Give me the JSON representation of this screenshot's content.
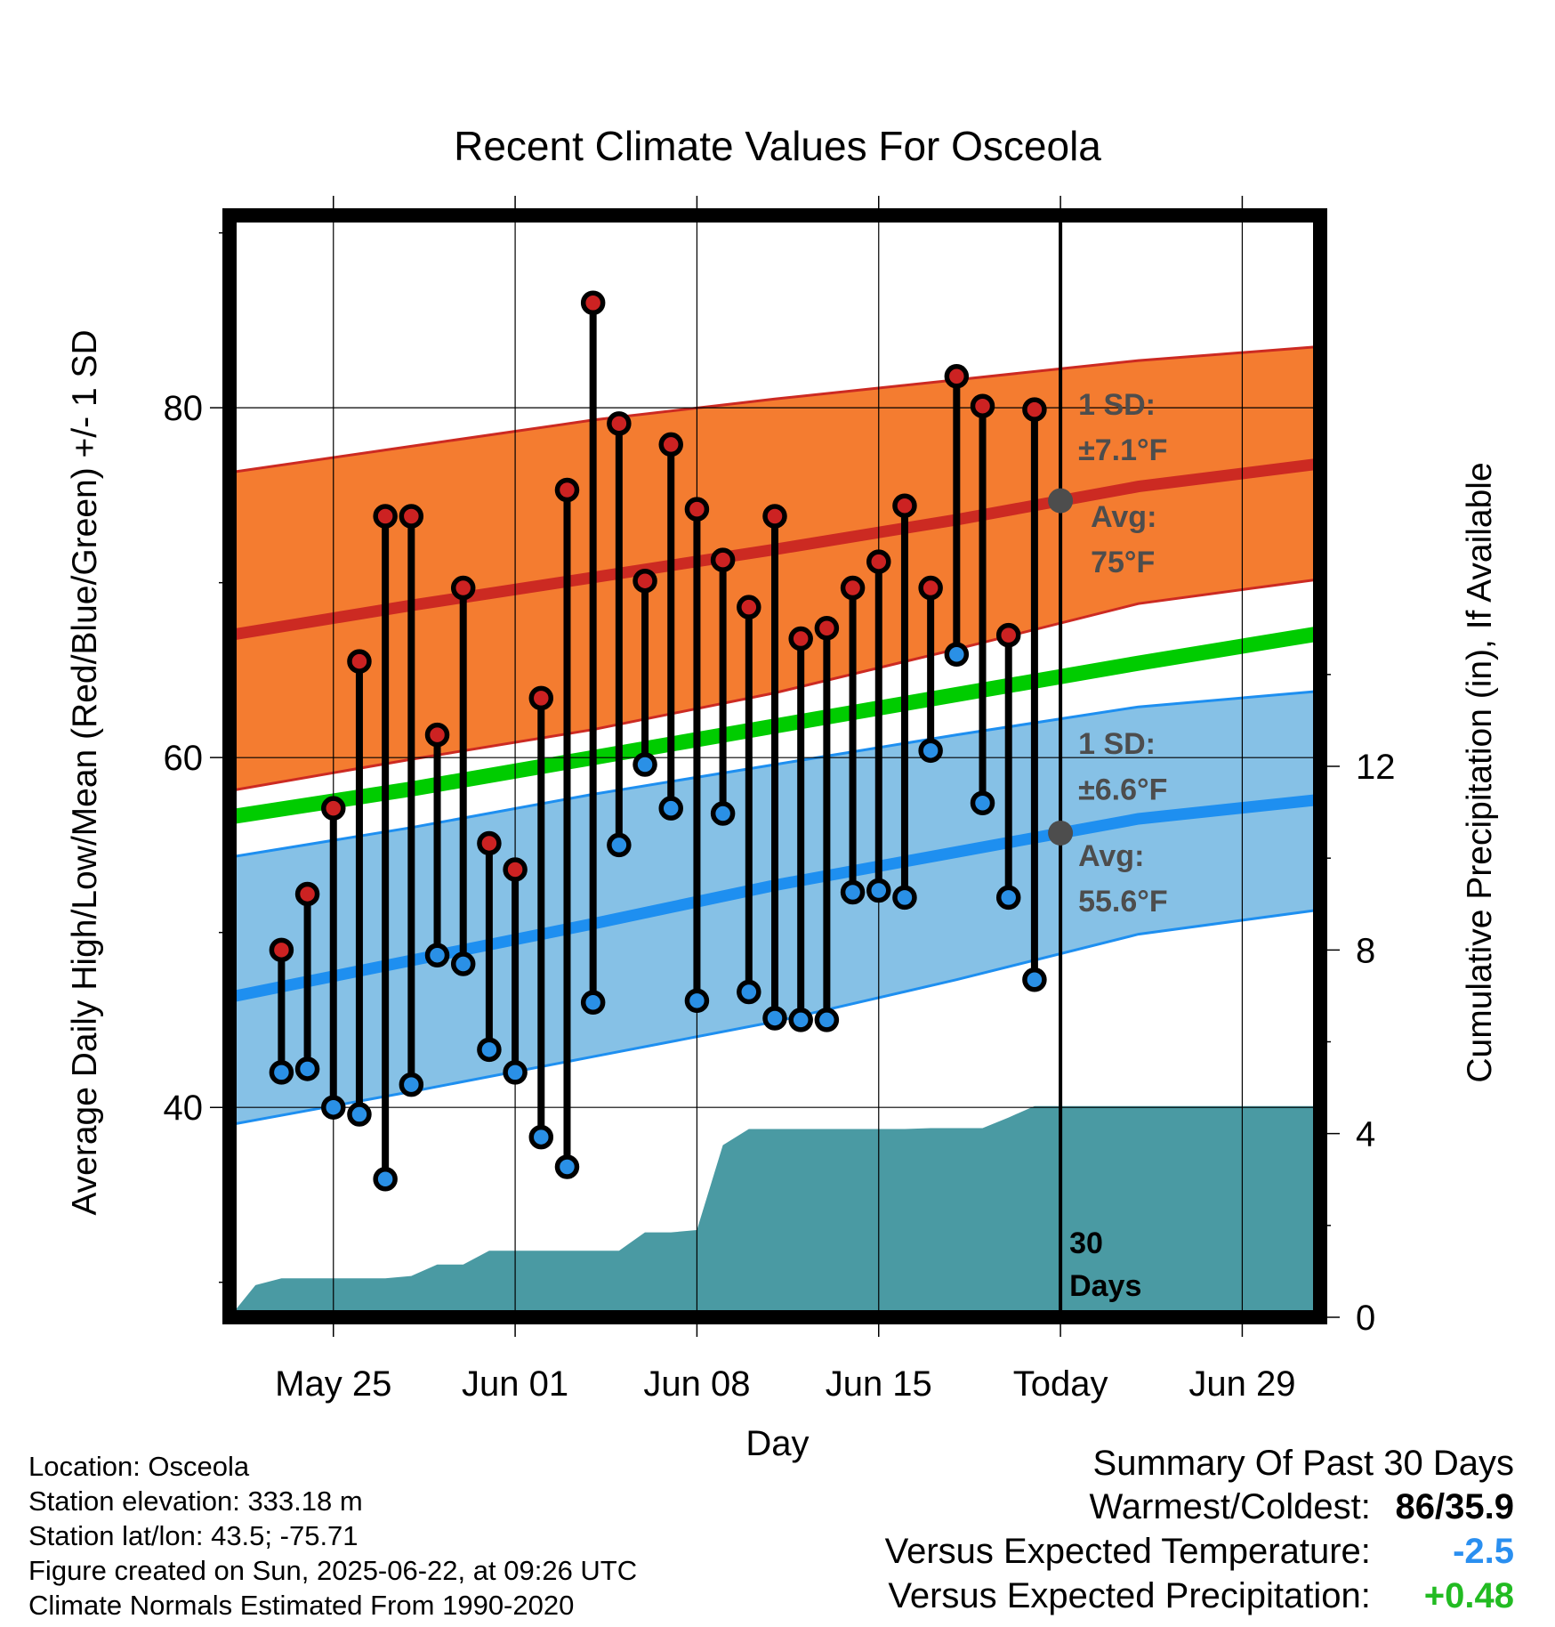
{
  "chart_data": {
    "type": "line",
    "title": "Recent Climate Values For Osceola",
    "xlabel": "Day",
    "ylabel": "Average Daily High/Low/Mean (Red/Blue/Green) +/- 1 SD",
    "y2label": "Cumulative Precipitation (in), If Available",
    "xlim": [
      "2025-05-21",
      "2025-07-02"
    ],
    "ylim": [
      28,
      91
    ],
    "y2lim": [
      0,
      24
    ],
    "x_ticks": [
      {
        "date": "2025-05-25",
        "label": "May 25"
      },
      {
        "date": "2025-06-01",
        "label": "Jun 01"
      },
      {
        "date": "2025-06-08",
        "label": "Jun 08"
      },
      {
        "date": "2025-06-15",
        "label": "Jun 15"
      },
      {
        "date": "2025-06-22",
        "label": "Today"
      },
      {
        "date": "2025-06-29",
        "label": "Jun 29"
      }
    ],
    "y_ticks": [
      40,
      60,
      80
    ],
    "y2_ticks": [
      0,
      4,
      8,
      12
    ],
    "grid": true,
    "colors": {
      "high_band": "#f47c30",
      "high_line": "#cc2a22",
      "low_band": "#86c1e6",
      "low_line": "#1e8ff0",
      "mean_line": "#00cc00",
      "precip": "#4a9aa3",
      "high_dot": "#cc2222",
      "low_dot": "#2a90e6",
      "annotation": "#4d4d4d"
    },
    "normals": {
      "dates": [
        "2025-05-21",
        "2025-05-28",
        "2025-06-04",
        "2025-06-11",
        "2025-06-18",
        "2025-06-25",
        "2025-07-02"
      ],
      "high_avg": [
        67.0,
        68.7,
        70.3,
        71.9,
        73.6,
        75.5,
        76.8
      ],
      "high_upper": [
        76.3,
        77.8,
        79.3,
        80.5,
        81.6,
        82.7,
        83.5
      ],
      "high_lower": [
        58.1,
        59.9,
        61.6,
        63.7,
        66.2,
        68.8,
        70.2
      ],
      "mean": [
        56.6,
        58.2,
        60.0,
        61.8,
        63.6,
        65.4,
        67.1
      ],
      "low_avg": [
        46.3,
        48.4,
        50.5,
        52.7,
        54.6,
        56.5,
        57.6
      ],
      "low_upper": [
        54.3,
        56.0,
        57.9,
        59.6,
        61.3,
        62.9,
        63.8
      ],
      "low_lower": [
        39.0,
        40.9,
        42.9,
        44.9,
        47.3,
        49.9,
        51.3
      ]
    },
    "daily": {
      "dates": [
        "2025-05-23",
        "2025-05-24",
        "2025-05-25",
        "2025-05-26",
        "2025-05-27",
        "2025-05-28",
        "2025-05-29",
        "2025-05-30",
        "2025-05-31",
        "2025-06-01",
        "2025-06-02",
        "2025-06-03",
        "2025-06-04",
        "2025-06-05",
        "2025-06-06",
        "2025-06-07",
        "2025-06-08",
        "2025-06-09",
        "2025-06-10",
        "2025-06-11",
        "2025-06-12",
        "2025-06-13",
        "2025-06-14",
        "2025-06-15",
        "2025-06-16",
        "2025-06-17",
        "2025-06-18",
        "2025-06-19",
        "2025-06-20",
        "2025-06-21"
      ],
      "high": [
        49.0,
        52.2,
        57.1,
        65.5,
        73.8,
        73.8,
        61.3,
        69.7,
        55.1,
        53.6,
        63.4,
        75.3,
        86.0,
        79.1,
        70.1,
        77.9,
        74.2,
        71.3,
        68.6,
        73.8,
        66.8,
        67.4,
        69.7,
        71.2,
        74.4,
        69.7,
        81.8,
        80.1,
        67.0,
        79.9
      ],
      "low": [
        42.0,
        42.2,
        40.0,
        39.6,
        35.9,
        41.3,
        48.7,
        48.2,
        43.3,
        42.0,
        38.3,
        36.6,
        46.0,
        55.0,
        59.6,
        57.1,
        46.1,
        56.8,
        46.6,
        45.1,
        45.0,
        45.0,
        52.3,
        52.4,
        52.0,
        60.4,
        65.9,
        57.4,
        52.0,
        47.3
      ]
    },
    "precip": {
      "dates": [
        "2025-05-21",
        "2025-05-22",
        "2025-05-23",
        "2025-05-24",
        "2025-05-25",
        "2025-05-26",
        "2025-05-27",
        "2025-05-28",
        "2025-05-29",
        "2025-05-30",
        "2025-05-31",
        "2025-06-01",
        "2025-06-02",
        "2025-06-03",
        "2025-06-04",
        "2025-06-05",
        "2025-06-06",
        "2025-06-07",
        "2025-06-08",
        "2025-06-09",
        "2025-06-10",
        "2025-06-11",
        "2025-06-12",
        "2025-06-13",
        "2025-06-14",
        "2025-06-15",
        "2025-06-16",
        "2025-06-17",
        "2025-06-18",
        "2025-06-19",
        "2025-06-20",
        "2025-06-21",
        "2025-06-22",
        "2025-07-02"
      ],
      "values": [
        0.0,
        0.7,
        0.85,
        0.85,
        0.85,
        0.85,
        0.85,
        0.9,
        1.15,
        1.15,
        1.45,
        1.45,
        1.45,
        1.45,
        1.45,
        1.45,
        1.85,
        1.85,
        1.9,
        3.75,
        4.1,
        4.1,
        4.1,
        4.1,
        4.1,
        4.1,
        4.1,
        4.12,
        4.12,
        4.12,
        4.35,
        4.6,
        4.6,
        4.6
      ]
    },
    "annotations": {
      "high_sd": "1 SD:",
      "high_sd_value": "±7.1°F",
      "high_avg_label": "Avg:",
      "high_avg_value": "75°F",
      "low_sd": "1 SD:",
      "low_sd_value": "±6.6°F",
      "low_avg_label": "Avg:",
      "low_avg_value": "55.6°F",
      "window_count": "30",
      "window_unit": "Days"
    }
  },
  "info": {
    "location": "Location: Osceola",
    "elevation": "Station elevation: 333.18 m",
    "latlon": "Station lat/lon: 43.5; -75.71",
    "created": "Figure created on Sun, 2025-06-22, at 09:26 UTC",
    "normals": "Climate Normals Estimated From 1990-2020"
  },
  "summary": {
    "title": "Summary Of Past 30 Days",
    "warmest_label": "Warmest/Coldest:",
    "warmest_value": "86/35.9",
    "temp_label": "Versus Expected Temperature:",
    "temp_value": "-2.5",
    "temp_color": "#2a8ff0",
    "precip_label": "Versus Expected Precipitation:",
    "precip_value": "+0.48",
    "precip_color": "#22bb22"
  }
}
